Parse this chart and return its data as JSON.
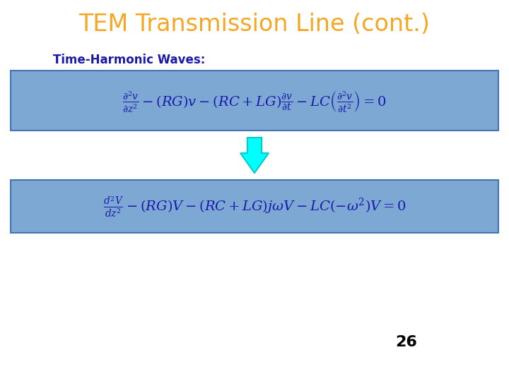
{
  "title": "TEM Transmission Line (cont.)",
  "title_color": "#F5A623",
  "subtitle": "Time-Harmonic Waves:",
  "subtitle_color": "#1a1aaa",
  "bg_color": "#ffffff",
  "box_color": "#6699cc",
  "box_edge_color": "#3366aa",
  "box1_eq": "$\\frac{\\partial^2 v}{\\partial z^2} - (RG)v - (RC + LG)\\frac{\\partial v}{\\partial t} - LC\\left(\\frac{\\partial^2 v}{\\partial t^2}\\right) = 0$",
  "box2_eq": "$\\frac{d^2 V}{dz^2} - (RG)V - (RC + LG)j\\omega V - LC(-\\omega^2)V = 0$",
  "arrow_color": "#00ffff",
  "arrow_edge_color": "#00cccc",
  "page_number": "26",
  "eq_color": "#1a1aaa",
  "title_fontsize": 24,
  "subtitle_fontsize": 12,
  "eq_fontsize": 14,
  "page_fontsize": 16
}
